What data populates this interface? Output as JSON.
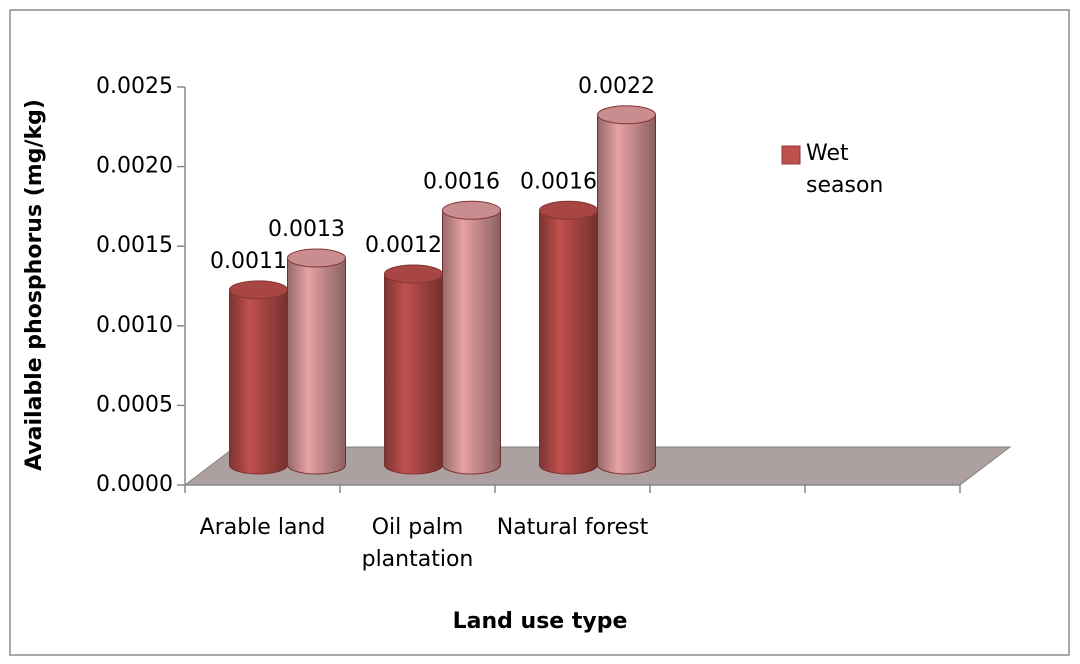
{
  "chart_data": {
    "type": "bar",
    "x_label": "Land use type",
    "y_label": "Available phosphorus (mg/kg)",
    "categories": [
      "Arable land",
      "Oil palm plantation",
      "Natural forest",
      null,
      null
    ],
    "series": [
      {
        "name": "Wet season",
        "color": "#c0504d",
        "values": [
          0.0011,
          0.0012,
          0.0016,
          null,
          null
        ]
      },
      {
        "color": "#e6a1a3",
        "values": [
          0.0013,
          0.0016,
          0.0022,
          null,
          null
        ]
      }
    ],
    "ylim": [
      0,
      0.0025
    ],
    "yticks": [
      {
        "value": 0,
        "label": "0.0000"
      },
      0.0005,
      {
        "value": 0.001,
        "label": "0.0010"
      },
      0.0015,
      {
        "value": 0.002,
        "label": "0.0020"
      },
      0.0025
    ],
    "legend": "right"
  }
}
